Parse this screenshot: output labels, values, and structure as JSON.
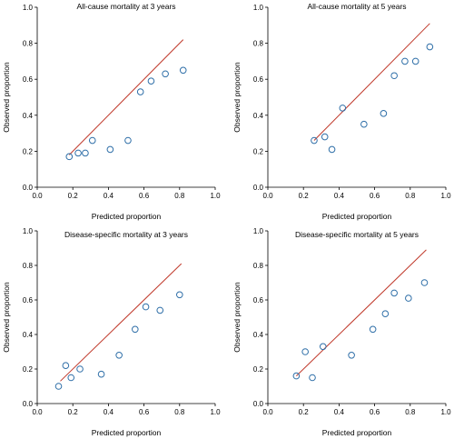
{
  "figure": {
    "colors": {
      "reference_line": "#c0392b",
      "points": "#2f6fa8",
      "axes": "#000000"
    }
  },
  "chart_data": [
    {
      "type": "scatter",
      "title": "All-cause mortality at 3 years",
      "xlabel": "Predicted proportion",
      "ylabel": "Observed proportion",
      "xlim": [
        0,
        1
      ],
      "ylim": [
        0,
        1
      ],
      "xticks": [
        "0.0",
        "0.2",
        "0.4",
        "0.6",
        "0.8",
        "1.0"
      ],
      "yticks": [
        "0.0",
        "0.2",
        "0.4",
        "0.6",
        "0.8",
        "1.0"
      ],
      "grid": false,
      "reference_line": [
        [
          0.18,
          0.18
        ],
        [
          0.82,
          0.82
        ]
      ],
      "points": [
        {
          "x": 0.18,
          "y": 0.17
        },
        {
          "x": 0.23,
          "y": 0.19
        },
        {
          "x": 0.27,
          "y": 0.19
        },
        {
          "x": 0.31,
          "y": 0.26
        },
        {
          "x": 0.41,
          "y": 0.21
        },
        {
          "x": 0.51,
          "y": 0.26
        },
        {
          "x": 0.58,
          "y": 0.53
        },
        {
          "x": 0.64,
          "y": 0.59
        },
        {
          "x": 0.72,
          "y": 0.63
        },
        {
          "x": 0.82,
          "y": 0.65
        }
      ]
    },
    {
      "type": "scatter",
      "title": "All-cause mortality at 5 years",
      "xlabel": "Predicted proportion",
      "ylabel": "Observed proportion",
      "xlim": [
        0,
        1
      ],
      "ylim": [
        0,
        1
      ],
      "xticks": [
        "0.0",
        "0.2",
        "0.4",
        "0.6",
        "0.8",
        "1.0"
      ],
      "yticks": [
        "0.0",
        "0.2",
        "0.4",
        "0.6",
        "0.8",
        "1.0"
      ],
      "grid": false,
      "reference_line": [
        [
          0.26,
          0.26
        ],
        [
          0.91,
          0.91
        ]
      ],
      "points": [
        {
          "x": 0.26,
          "y": 0.26
        },
        {
          "x": 0.32,
          "y": 0.28
        },
        {
          "x": 0.36,
          "y": 0.21
        },
        {
          "x": 0.42,
          "y": 0.44
        },
        {
          "x": 0.54,
          "y": 0.35
        },
        {
          "x": 0.65,
          "y": 0.41
        },
        {
          "x": 0.71,
          "y": 0.62
        },
        {
          "x": 0.77,
          "y": 0.7
        },
        {
          "x": 0.83,
          "y": 0.7
        },
        {
          "x": 0.91,
          "y": 0.78
        }
      ]
    },
    {
      "type": "scatter",
      "title": "Disease-specific mortality at 3 years",
      "xlabel": "Predicted proportion",
      "ylabel": "Observed proportion",
      "xlim": [
        0,
        1
      ],
      "ylim": [
        0,
        1
      ],
      "xticks": [
        "0.0",
        "0.2",
        "0.4",
        "0.6",
        "0.8",
        "1.0"
      ],
      "yticks": [
        "0.0",
        "0.2",
        "0.4",
        "0.6",
        "0.8",
        "1.0"
      ],
      "grid": false,
      "reference_line": [
        [
          0.13,
          0.13
        ],
        [
          0.81,
          0.81
        ]
      ],
      "points": [
        {
          "x": 0.12,
          "y": 0.1
        },
        {
          "x": 0.16,
          "y": 0.22
        },
        {
          "x": 0.19,
          "y": 0.15
        },
        {
          "x": 0.24,
          "y": 0.2
        },
        {
          "x": 0.36,
          "y": 0.17
        },
        {
          "x": 0.46,
          "y": 0.28
        },
        {
          "x": 0.55,
          "y": 0.43
        },
        {
          "x": 0.61,
          "y": 0.56
        },
        {
          "x": 0.69,
          "y": 0.54
        },
        {
          "x": 0.8,
          "y": 0.63
        }
      ]
    },
    {
      "type": "scatter",
      "title": "Disease-specific mortality at 5 years",
      "xlabel": "Predicted proportion",
      "ylabel": "Observed proportion",
      "xlim": [
        0,
        1
      ],
      "ylim": [
        0,
        1
      ],
      "xticks": [
        "0.0",
        "0.2",
        "0.4",
        "0.6",
        "0.8",
        "1.0"
      ],
      "yticks": [
        "0.0",
        "0.2",
        "0.4",
        "0.6",
        "0.8",
        "1.0"
      ],
      "grid": false,
      "reference_line": [
        [
          0.16,
          0.16
        ],
        [
          0.89,
          0.89
        ]
      ],
      "points": [
        {
          "x": 0.16,
          "y": 0.16
        },
        {
          "x": 0.21,
          "y": 0.3
        },
        {
          "x": 0.25,
          "y": 0.15
        },
        {
          "x": 0.31,
          "y": 0.33
        },
        {
          "x": 0.47,
          "y": 0.28
        },
        {
          "x": 0.59,
          "y": 0.43
        },
        {
          "x": 0.66,
          "y": 0.52
        },
        {
          "x": 0.71,
          "y": 0.64
        },
        {
          "x": 0.79,
          "y": 0.61
        },
        {
          "x": 0.88,
          "y": 0.7
        }
      ]
    }
  ]
}
